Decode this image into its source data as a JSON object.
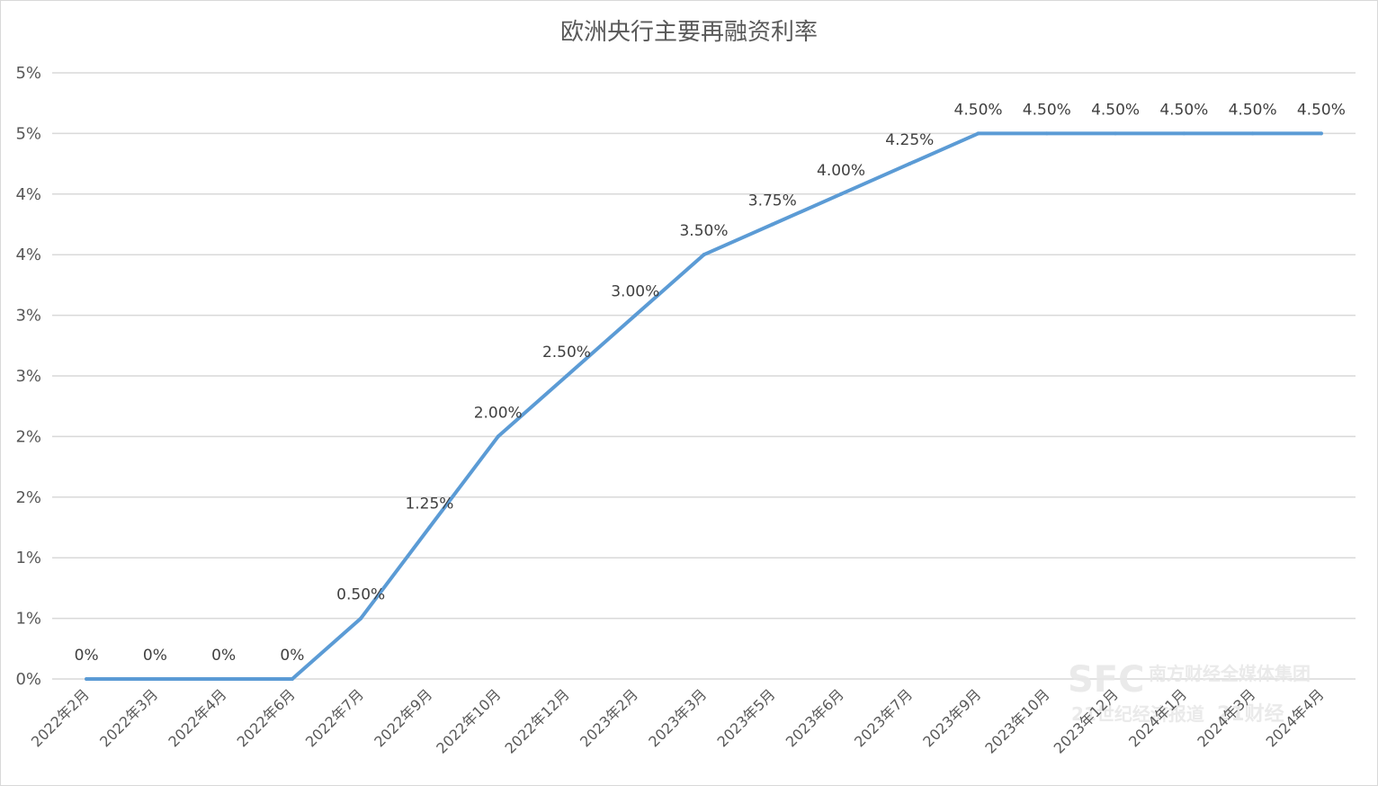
{
  "chart_data": {
    "type": "line",
    "title": "欧洲央行主要再融资利率",
    "xlabel": "",
    "ylabel": "",
    "ylim": [
      0,
      5
    ],
    "y_tick_labels": [
      "0%",
      "1%",
      "1%",
      "2%",
      "2%",
      "3%",
      "3%",
      "4%",
      "4%",
      "5%",
      "5%"
    ],
    "categories": [
      "2022年2月",
      "2022年3月",
      "2022年4月",
      "2022年6月",
      "2022年7月",
      "2022年9月",
      "2022年10月",
      "2022年12月",
      "2023年2月",
      "2023年3月",
      "2023年5月",
      "2023年6月",
      "2023年7月",
      "2023年9月",
      "2023年10月",
      "2023年12月",
      "2024年1月",
      "2024年3月",
      "2024年4月"
    ],
    "series": [
      {
        "values": [
          0,
          0,
          0,
          0,
          0.5,
          1.25,
          2.0,
          2.5,
          3.0,
          3.5,
          3.75,
          4.0,
          4.25,
          4.5,
          4.5,
          4.5,
          4.5,
          4.5,
          4.5
        ],
        "data_labels": [
          "0%",
          "0%",
          "0%",
          "0%",
          "0.50%",
          "1.25%",
          "2.00%",
          "2.50%",
          "3.00%",
          "3.50%",
          "3.75%",
          "4.00%",
          "4.25%",
          "4.50%",
          "4.50%",
          "4.50%",
          "4.50%",
          "4.50%",
          "4.50%"
        ],
        "color": "#5b9bd5"
      }
    ],
    "grid": true,
    "legend": "none"
  },
  "watermark": {
    "logo": "SFC",
    "group": "南方财经全媒体集团",
    "brand1": "21世纪经济报道",
    "brand2": "21财经"
  }
}
